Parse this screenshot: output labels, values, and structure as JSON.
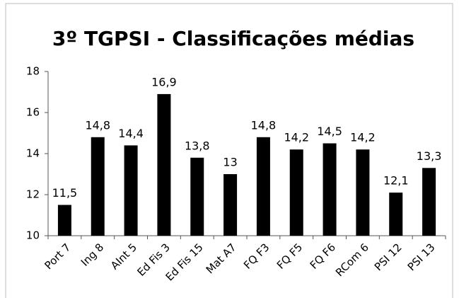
{
  "chart_data": {
    "type": "bar",
    "title": "3º TGPSI - Classificações médias",
    "categories": [
      "Port 7",
      "Ing 8",
      "AInt 5",
      "Ed Fis 3",
      "Ed Fis 15",
      "Mat A7",
      "FQ F3",
      "FQ F5",
      "FQ F6",
      "RCom 6",
      "PSI 12",
      "PSI 13"
    ],
    "values": [
      11.5,
      14.8,
      14.4,
      16.9,
      13.8,
      13,
      14.8,
      14.2,
      14.5,
      14.2,
      12.1,
      13.3
    ],
    "value_labels": [
      "11,5",
      "14,8",
      "14,4",
      "16,9",
      "13,8",
      "13",
      "14,8",
      "14,2",
      "14,5",
      "14,2",
      "12,1",
      "13,3"
    ],
    "color": "#000000",
    "ylim": [
      10,
      18
    ],
    "yticks": [
      10,
      12,
      14,
      16,
      18
    ],
    "grid": false
  }
}
